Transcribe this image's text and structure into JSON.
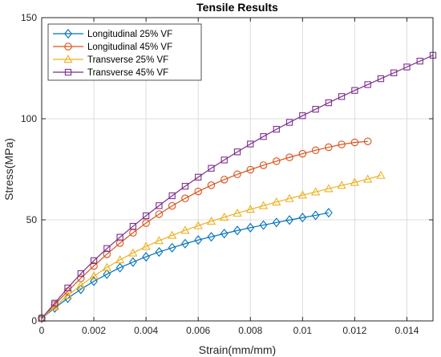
{
  "chart_data": {
    "type": "line",
    "title": "Tensile Results",
    "xlabel": "Strain(mm/mm)",
    "ylabel": "Stress(MPa)",
    "xlim": [
      0,
      0.015
    ],
    "ylim": [
      0,
      150
    ],
    "xticks": [
      0,
      0.002,
      0.004,
      0.006,
      0.008,
      0.01,
      0.012,
      0.014
    ],
    "xtick_labels": [
      "0",
      "0.002",
      "0.004",
      "0.006",
      "0.008",
      "0.01",
      "0.012",
      "0.014"
    ],
    "yticks": [
      0,
      50,
      100,
      150
    ],
    "ytick_labels": [
      "0",
      "50",
      "100",
      "150"
    ],
    "grid": true,
    "legend_position": "top-left",
    "series": [
      {
        "name": "Longitudinal 25% VF",
        "color": "#0072BD",
        "marker": "diamond",
        "x": [
          0,
          0.0005,
          0.001,
          0.0015,
          0.002,
          0.0025,
          0.003,
          0.0035,
          0.004,
          0.0045,
          0.005,
          0.0055,
          0.006,
          0.0065,
          0.007,
          0.0075,
          0.008,
          0.0085,
          0.009,
          0.0095,
          0.01,
          0.0105,
          0.011
        ],
        "y": [
          1.3,
          6.4,
          11.2,
          15.6,
          19.6,
          23.1,
          26.3,
          29.1,
          31.7,
          34.1,
          36.2,
          38.2,
          40.0,
          41.6,
          43.2,
          44.7,
          46.1,
          47.4,
          48.7,
          49.9,
          51.1,
          52.2,
          53.5
        ]
      },
      {
        "name": "Longitudinal 45% VF",
        "color": "#D95319",
        "marker": "circle",
        "x": [
          0,
          0.0005,
          0.001,
          0.0015,
          0.002,
          0.0025,
          0.003,
          0.0035,
          0.004,
          0.0045,
          0.005,
          0.0055,
          0.006,
          0.0065,
          0.007,
          0.0075,
          0.008,
          0.0085,
          0.009,
          0.0095,
          0.01,
          0.0105,
          0.011,
          0.0115,
          0.012,
          0.0125
        ],
        "y": [
          1.3,
          8.0,
          14.7,
          21.1,
          27.2,
          33.0,
          38.5,
          43.6,
          48.4,
          52.8,
          56.9,
          60.6,
          64.0,
          67.1,
          69.9,
          72.5,
          74.8,
          77.0,
          79.0,
          80.9,
          82.7,
          84.4,
          85.9,
          87.3,
          88.3,
          88.8
        ]
      },
      {
        "name": "Transverse 25% VF",
        "color": "#EDB120",
        "marker": "triangle",
        "x": [
          0,
          0.0005,
          0.001,
          0.0015,
          0.002,
          0.0025,
          0.003,
          0.0035,
          0.004,
          0.0045,
          0.005,
          0.0055,
          0.006,
          0.0065,
          0.007,
          0.0075,
          0.008,
          0.0085,
          0.009,
          0.0095,
          0.01,
          0.0105,
          0.011,
          0.0115,
          0.012,
          0.0125,
          0.013
        ],
        "y": [
          1.3,
          7.0,
          12.6,
          17.6,
          22.2,
          26.4,
          30.2,
          33.6,
          36.8,
          39.7,
          42.3,
          44.8,
          47.1,
          49.3,
          51.3,
          53.3,
          55.2,
          57.0,
          58.8,
          60.5,
          62.2,
          63.8,
          65.4,
          67.0,
          68.5,
          70.1,
          72.0
        ]
      },
      {
        "name": "Transverse 45% VF",
        "color": "#7E2F8E",
        "marker": "square",
        "x": [
          0,
          0.0005,
          0.001,
          0.0015,
          0.002,
          0.0025,
          0.003,
          0.0035,
          0.004,
          0.0045,
          0.005,
          0.0055,
          0.006,
          0.0065,
          0.007,
          0.0075,
          0.008,
          0.0085,
          0.009,
          0.0095,
          0.01,
          0.0105,
          0.011,
          0.0115,
          0.012,
          0.0125,
          0.013,
          0.0135,
          0.014,
          0.0145,
          0.015
        ],
        "y": [
          1.3,
          8.8,
          16.3,
          23.4,
          29.8,
          35.8,
          41.4,
          46.8,
          52.0,
          57.0,
          61.9,
          66.6,
          71.1,
          75.5,
          79.6,
          83.6,
          87.5,
          91.2,
          94.8,
          98.2,
          101.5,
          104.7,
          107.9,
          111.0,
          114.0,
          116.9,
          119.8,
          122.7,
          125.6,
          128.5,
          131.4
        ]
      }
    ]
  }
}
